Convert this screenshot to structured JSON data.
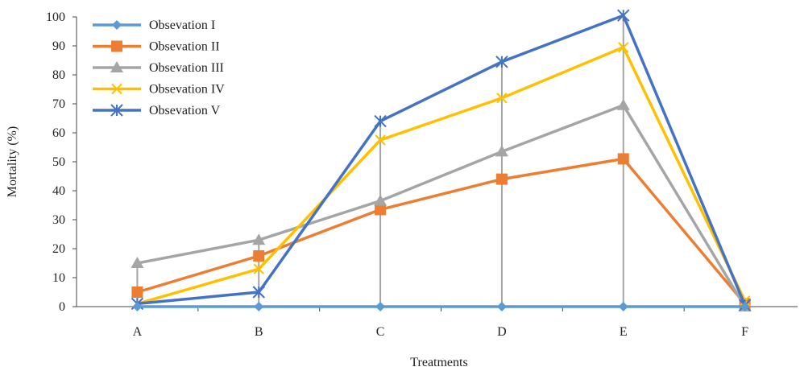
{
  "chart_data": {
    "type": "line",
    "title": "",
    "xlabel": "Treatments",
    "ylabel": "Mortality (%)",
    "categories": [
      "A",
      "B",
      "C",
      "D",
      "E",
      "F"
    ],
    "ylim": [
      0,
      100
    ],
    "yticks": [
      0,
      10,
      20,
      30,
      40,
      50,
      60,
      70,
      80,
      90,
      100
    ],
    "grid": false,
    "drop_lines": true,
    "legend": "top-left",
    "series": [
      {
        "name": "Obsevation I",
        "color": "#5B9BD5",
        "marker": "diamond",
        "values": [
          0,
          0,
          0,
          0,
          0,
          0
        ]
      },
      {
        "name": "Obsevation II",
        "color": "#ED7D31",
        "marker": "square",
        "values": [
          5,
          17.5,
          33.5,
          44,
          51,
          1
        ]
      },
      {
        "name": "Obsevation III",
        "color": "#A5A5A5",
        "marker": "triangle",
        "values": [
          15,
          23,
          36.5,
          53.5,
          69.5,
          0
        ]
      },
      {
        "name": "Obsevation IV",
        "color": "#FFC000",
        "marker": "x",
        "values": [
          1,
          13,
          57.5,
          72,
          89.5,
          2
        ]
      },
      {
        "name": "Obsevation V",
        "color": "#4472C4",
        "marker": "star",
        "values": [
          1,
          5,
          64,
          84.5,
          100.5,
          0.5
        ]
      }
    ]
  }
}
